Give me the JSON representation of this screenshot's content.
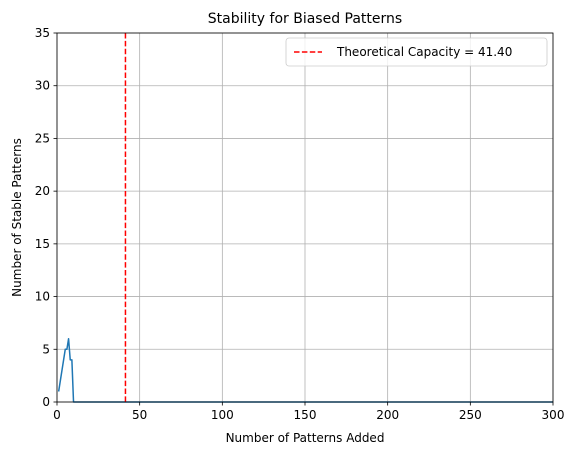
{
  "chart_data": {
    "type": "line",
    "title": "Stability for Biased Patterns",
    "xlabel": "Number of Patterns Added",
    "ylabel": "Number of Stable Patterns",
    "xlim": [
      0,
      300
    ],
    "ylim": [
      0,
      35
    ],
    "xticks": [
      0,
      50,
      100,
      150,
      200,
      250,
      300
    ],
    "yticks": [
      0,
      5,
      10,
      15,
      20,
      25,
      30,
      35
    ],
    "grid": true,
    "legend_position": "top-right",
    "series": [
      {
        "color": "#1f77b4",
        "x": [
          1,
          2,
          3,
          4,
          5,
          6,
          7,
          8,
          9,
          10,
          11,
          12,
          20,
          50,
          100,
          150,
          200,
          250,
          300
        ],
        "y": [
          1,
          2,
          3,
          4,
          5,
          5,
          6,
          4,
          4,
          0,
          0,
          0,
          0,
          0,
          0,
          0,
          0,
          0,
          0
        ]
      }
    ],
    "reference_line": {
      "label": "Theoretical Capacity = 41.40",
      "x": 41.4,
      "color": "#ff0000",
      "style": "dashed"
    }
  }
}
